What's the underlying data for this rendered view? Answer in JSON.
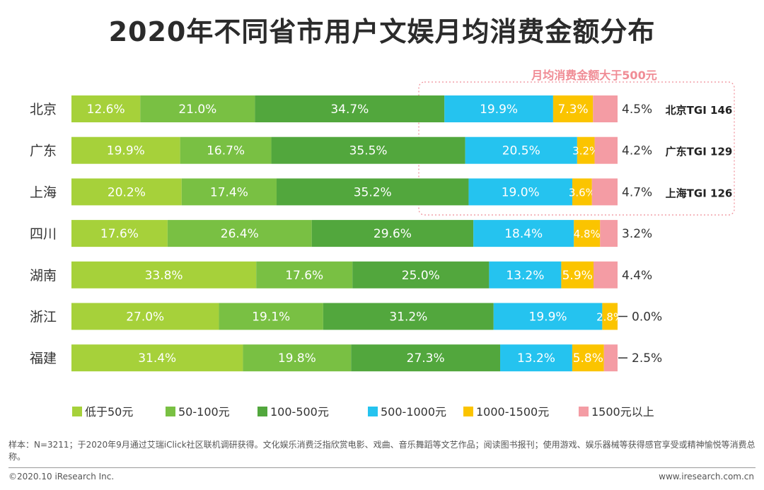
{
  "title": "2020年不同省市用户文娱月均消费金额分布",
  "chart_data": {
    "type": "bar",
    "orientation": "horizontal",
    "stacked": true,
    "percent_stacked": true,
    "categories": [
      "北京",
      "广东",
      "上海",
      "四川",
      "湖南",
      "浙江",
      "福建"
    ],
    "series": [
      {
        "name": "低于50元",
        "color": "#a6d13a",
        "labels": [
          "12.6%",
          "19.9%",
          "20.2%",
          "17.6%",
          "33.8%",
          "27.0%",
          "31.4%"
        ],
        "values": [
          12.6,
          19.9,
          20.2,
          17.6,
          33.8,
          27.0,
          31.4
        ]
      },
      {
        "name": "50-100元",
        "color": "#79c043",
        "labels": [
          "21.0%",
          "16.7%",
          "17.4%",
          "26.4%",
          "17.6%",
          "19.1%",
          "19.8%"
        ],
        "values": [
          21.0,
          16.7,
          17.4,
          26.4,
          17.6,
          19.1,
          19.8
        ]
      },
      {
        "name": "100-500元",
        "color": "#52a73d",
        "labels": [
          "34.7%",
          "35.5%",
          "35.2%",
          "29.6%",
          "25.0%",
          "31.2%",
          "27.3%"
        ],
        "values": [
          34.7,
          35.5,
          35.2,
          29.6,
          25.0,
          31.2,
          27.3
        ]
      },
      {
        "name": "500-1000元",
        "color": "#25c3ef",
        "labels": [
          "19.9%",
          "20.5%",
          "19.0%",
          "18.4%",
          "13.2%",
          "19.9%",
          "13.2%"
        ],
        "values": [
          19.9,
          20.5,
          19.0,
          18.4,
          13.2,
          19.9,
          13.2
        ]
      },
      {
        "name": "1000-1500元",
        "color": "#fbc400",
        "labels": [
          "7.3%",
          "3.2%",
          "3.6%",
          "4.8%",
          "5.9%",
          "2.8%",
          "5.8%"
        ],
        "values": [
          7.3,
          3.2,
          3.6,
          4.8,
          5.9,
          2.8,
          5.8
        ]
      },
      {
        "name": "1500元以上",
        "color": "#f49ca4",
        "labels": [
          "4.5%",
          "4.2%",
          "4.7%",
          "3.2%",
          "4.4%",
          "0.0%",
          "2.5%"
        ],
        "values": [
          4.5,
          4.2,
          4.7,
          3.2,
          4.4,
          0.0,
          2.5
        ]
      }
    ],
    "annotation": {
      "label": "月均消费金额大于500元",
      "tgi": [
        "北京TGI 146",
        "广东TGI 129",
        "上海TGI 126"
      ]
    },
    "legend_position": "bottom"
  },
  "footer": {
    "note": "样本：N=3211；于2020年9月通过艾瑞iClick社区联机调研获得。文化娱乐消费泛指欣赏电影、戏曲、音乐舞蹈等文艺作品；阅读图书报刊；使用游戏、娱乐器械等获得感官享受或精神愉悦等消费总称。",
    "copyright": "©2020.10 iResearch Inc.",
    "website": "www.iresearch.com.cn"
  }
}
